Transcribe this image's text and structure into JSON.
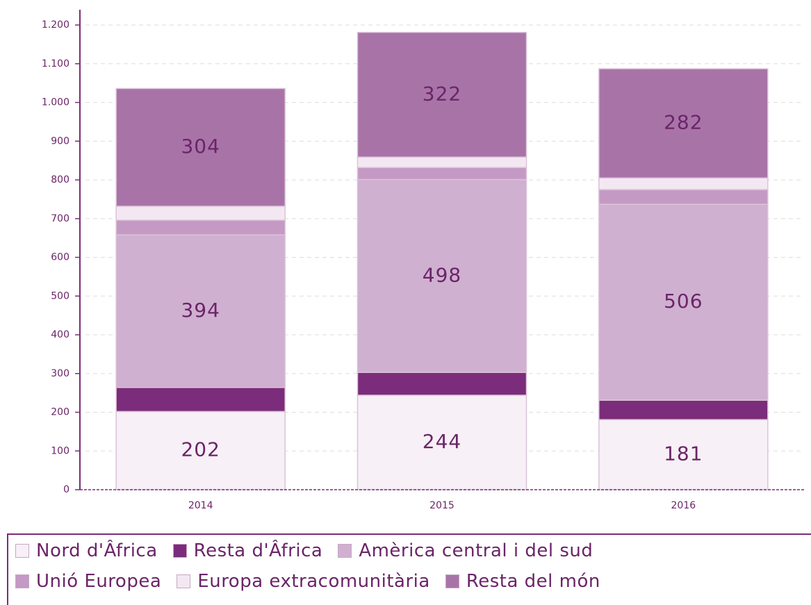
{
  "chart_data": {
    "type": "stacked_bar",
    "categories": [
      "2014",
      "2015",
      "2016"
    ],
    "series": [
      {
        "name": "Nord d'Âfrica",
        "color": "#f7f0f6",
        "values": [
          202,
          244,
          181
        ],
        "data_labels": true
      },
      {
        "name": "Resta d'Âfrica",
        "color": "#7b2c7a",
        "values": [
          62,
          59,
          50
        ]
      },
      {
        "name": "Amèrica central i del sud",
        "color": "#cfb0d0",
        "values": [
          394,
          498,
          506
        ],
        "data_labels": true
      },
      {
        "name": "Unió Europea",
        "color": "#c49ac4",
        "values": [
          38,
          31,
          38
        ]
      },
      {
        "name": "Europa extracomunitària",
        "color": "#f3e8f2",
        "values": [
          36,
          27,
          30
        ]
      },
      {
        "name": "Resta del món",
        "color": "#a874a8",
        "values": [
          304,
          322,
          282
        ],
        "data_labels": true
      }
    ],
    "ylim": [
      0,
      1200
    ],
    "yticks": [
      0,
      100,
      200,
      300,
      400,
      500,
      600,
      700,
      800,
      900,
      {
        "value": 1000,
        "label": "1.000"
      },
      {
        "value": 1100,
        "label": "1.100"
      },
      {
        "value": 1200,
        "label": "1.200"
      }
    ],
    "grid": true,
    "legend": "bottom"
  }
}
